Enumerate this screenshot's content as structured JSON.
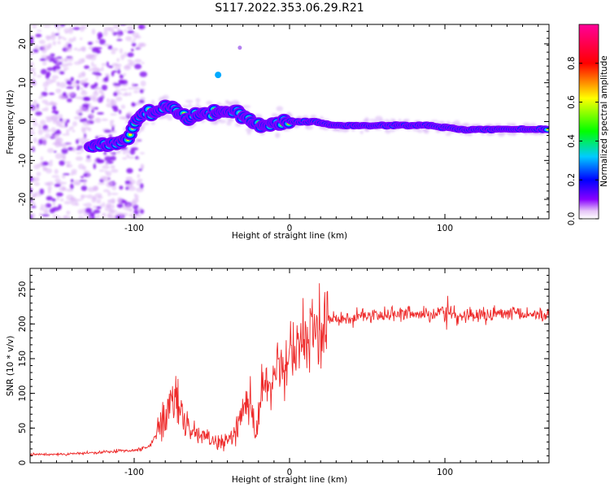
{
  "title": "S117.2022.353.06.29.R21",
  "chart_data": [
    {
      "type": "heatmap",
      "xlabel": "Height of straight line (km)",
      "ylabel": "Frequency (Hz)",
      "xlim": [
        -167,
        167
      ],
      "ylim": [
        -25,
        25
      ],
      "x_ticks": [
        -100,
        0,
        100
      ],
      "y_ticks": [
        -20,
        -10,
        0,
        10,
        20
      ],
      "colorbar": {
        "label": "Normalized spectral amplitude",
        "range": [
          0,
          1
        ],
        "ticks": [
          "0.0",
          "0.2",
          "0.4",
          "0.6",
          "0.8"
        ],
        "colors": [
          "#ffffff",
          "#e6c6f7",
          "#8800ff",
          "#0000ff",
          "#00ccff",
          "#00ff00",
          "#ffff00",
          "#ff0000",
          "#ff0099"
        ]
      },
      "ridge": {
        "x": [
          -120,
          -105,
          -95,
          -85,
          -75,
          -65,
          -55,
          -45,
          -35,
          -28,
          -22,
          -15,
          -5,
          5,
          15,
          30,
          50,
          70,
          90,
          110,
          130,
          150,
          167
        ],
        "y": [
          -6,
          -5,
          2,
          3,
          4,
          1,
          2,
          2,
          3,
          1,
          -1,
          -1,
          0,
          0,
          0,
          -1,
          -1,
          -1,
          -1,
          -2,
          -2,
          -2,
          -2
        ]
      }
    },
    {
      "type": "line",
      "xlabel": "Height of straight line (km)",
      "ylabel": "SNR (10 * v/v)",
      "xlim": [
        -167,
        167
      ],
      "ylim": [
        0,
        280
      ],
      "x_ticks": [
        -100,
        0,
        100
      ],
      "y_ticks": [
        0,
        50,
        100,
        150,
        200,
        250
      ],
      "line_color": "#ee2a2a",
      "series": [
        {
          "x": [
            -167,
            -155,
            -140,
            -130,
            -120,
            -110,
            -100,
            -95,
            -90,
            -85,
            -82,
            -80,
            -78,
            -76,
            -74,
            -72,
            -70,
            -67,
            -64,
            -60,
            -55,
            -50,
            -45,
            -40,
            -35,
            -30,
            -28,
            -26,
            -24,
            -22,
            -20,
            -18,
            -15,
            -12,
            -10,
            -8,
            -5,
            -2,
            0,
            3,
            6,
            10,
            15,
            20,
            25,
            30,
            40,
            50,
            60,
            70,
            80,
            90,
            95,
            100,
            102,
            105,
            110,
            120,
            130,
            140,
            150,
            160,
            167
          ],
          "y": [
            12,
            12,
            13,
            14,
            15,
            17,
            18,
            20,
            25,
            45,
            55,
            60,
            75,
            80,
            85,
            95,
            70,
            55,
            45,
            40,
            38,
            32,
            30,
            35,
            45,
            80,
            90,
            95,
            70,
            40,
            70,
            100,
            110,
            100,
            120,
            130,
            140,
            150,
            145,
            150,
            170,
            175,
            180,
            195,
            205,
            210,
            210,
            212,
            213,
            213,
            214,
            215,
            216,
            218,
            220,
            215,
            212,
            212,
            213,
            214,
            213,
            214,
            214
          ]
        }
      ]
    }
  ]
}
